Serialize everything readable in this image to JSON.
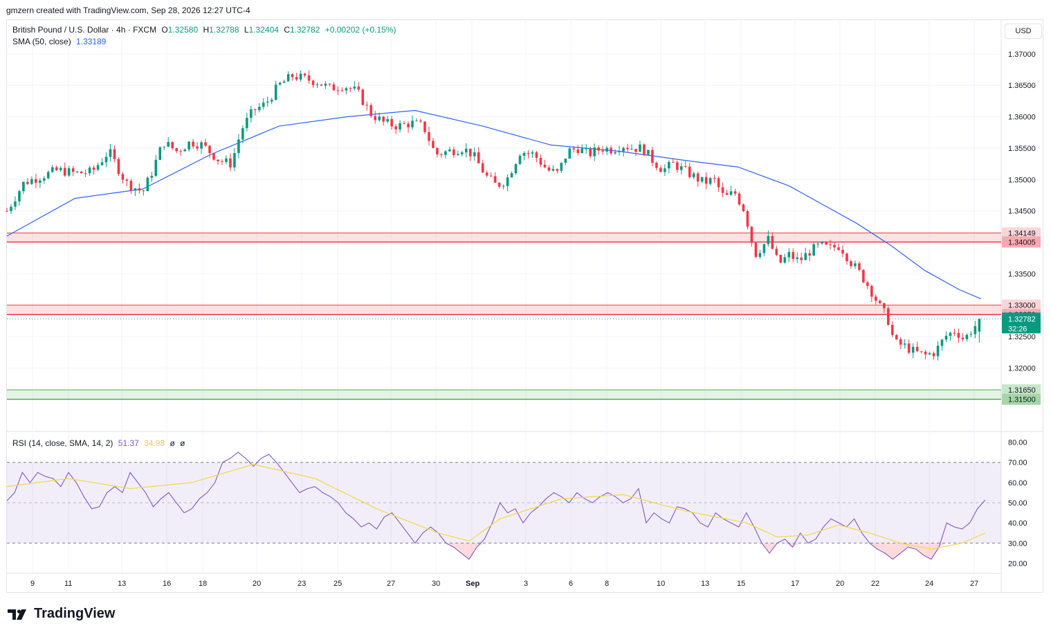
{
  "header": {
    "credit": "gmzern created with TradingView.com, Sep 28, 2026 12:27 UTC-4"
  },
  "legend": {
    "symbol": "British Pound / U.S. Dollar · 4h · FXCM",
    "o_label": "O",
    "o": "1.32580",
    "h_label": "H",
    "h": "1.32788",
    "l_label": "L",
    "l": "1.32404",
    "c_label": "C",
    "c": "1.32782",
    "change": "+0.00202 (+0.15%)",
    "sma_label": "SMA (50, close)",
    "sma_value": "1.33189",
    "rsi_label": "RSI (14, close, SMA, 14, 2)",
    "rsi_value": "51.37",
    "rsi_ma_value": "34.98",
    "rsi_extra1": "ø",
    "rsi_extra2": "ø"
  },
  "currency_button": "USD",
  "brand": "TradingView",
  "colors": {
    "up": "#089981",
    "down": "#f23645",
    "sma": "#2962ff",
    "rsi": "#7e57c2",
    "rsi_ma": "#f2d94c",
    "resistance": "#f23645",
    "support": "#4caf50",
    "grid": "#f0f3fa",
    "text": "#131722"
  },
  "chart_data": [
    {
      "type": "candlestick",
      "title": "British Pound / U.S. Dollar · 4h · FXCM",
      "ylim": [
        1.31,
        1.3755
      ],
      "y_ticks": [
        "1.37000",
        "1.36500",
        "1.36000",
        "1.35500",
        "1.35000",
        "1.34500",
        "1.33500",
        "1.32500",
        "1.32000"
      ],
      "x_ticks": [
        "9",
        "11",
        "13",
        "16",
        "18",
        "20",
        "23",
        "25",
        "27",
        "30",
        "Sep",
        "3",
        "6",
        "8",
        "10",
        "13",
        "15",
        "17",
        "20",
        "22",
        "24",
        "27"
      ],
      "zones": [
        {
          "kind": "resistance",
          "top": 1.34149,
          "bottom": 1.34005,
          "labels": [
            "1.34149",
            "1.34005"
          ]
        },
        {
          "kind": "resistance",
          "top": 1.33,
          "bottom": 1.3285,
          "labels": [
            "1.33000",
            "1.32850"
          ]
        },
        {
          "kind": "support",
          "top": 1.3165,
          "bottom": 1.315,
          "labels": [
            "1.31650",
            "1.31500"
          ]
        }
      ],
      "last_price": {
        "value": 1.32782,
        "label": "1.32782",
        "countdown": "32:26"
      },
      "close_path": [
        [
          0,
          1.345
        ],
        [
          10,
          1.3495
        ],
        [
          20,
          1.3505
        ],
        [
          30,
          1.3515
        ],
        [
          40,
          1.351
        ],
        [
          50,
          1.3512
        ],
        [
          60,
          1.3545
        ],
        [
          70,
          1.3495
        ],
        [
          80,
          1.348
        ],
        [
          85,
          1.351
        ],
        [
          92,
          1.356
        ],
        [
          100,
          1.3545
        ],
        [
          108,
          1.356
        ],
        [
          115,
          1.3555
        ],
        [
          125,
          1.353
        ],
        [
          132,
          1.3525
        ],
        [
          138,
          1.358
        ],
        [
          145,
          1.361
        ],
        [
          152,
          1.362
        ],
        [
          160,
          1.365
        ],
        [
          168,
          1.3665
        ],
        [
          176,
          1.366
        ],
        [
          183,
          1.3655
        ],
        [
          190,
          1.3645
        ],
        [
          198,
          1.365
        ],
        [
          206,
          1.364
        ],
        [
          214,
          1.3605
        ],
        [
          222,
          1.359
        ],
        [
          230,
          1.3585
        ],
        [
          238,
          1.359
        ],
        [
          245,
          1.3585
        ],
        [
          252,
          1.354
        ],
        [
          260,
          1.3545
        ],
        [
          268,
          1.355
        ],
        [
          274,
          1.354
        ],
        [
          282,
          1.3505
        ],
        [
          288,
          1.349
        ],
        [
          294,
          1.35
        ],
        [
          302,
          1.3545
        ],
        [
          310,
          1.354
        ],
        [
          318,
          1.3515
        ],
        [
          324,
          1.351
        ],
        [
          330,
          1.3545
        ],
        [
          336,
          1.355
        ],
        [
          342,
          1.354
        ],
        [
          350,
          1.355
        ],
        [
          356,
          1.3548
        ],
        [
          362,
          1.3555
        ],
        [
          368,
          1.355
        ],
        [
          374,
          1.355
        ],
        [
          380,
          1.353
        ],
        [
          386,
          1.3515
        ],
        [
          392,
          1.3525
        ],
        [
          398,
          1.3515
        ],
        [
          404,
          1.3505
        ],
        [
          410,
          1.3495
        ],
        [
          416,
          1.35
        ],
        [
          422,
          1.347
        ],
        [
          428,
          1.348
        ],
        [
          434,
          1.345
        ],
        [
          440,
          1.338
        ],
        [
          448,
          1.3405
        ],
        [
          454,
          1.3365
        ],
        [
          460,
          1.338
        ],
        [
          466,
          1.337
        ],
        [
          472,
          1.3385
        ],
        [
          478,
          1.3395
        ],
        [
          484,
          1.339
        ],
        [
          490,
          1.3395
        ],
        [
          496,
          1.337
        ],
        [
          502,
          1.335
        ],
        [
          508,
          1.3325
        ],
        [
          514,
          1.3295
        ],
        [
          518,
          1.328
        ],
        [
          522,
          1.324
        ],
        [
          528,
          1.3235
        ],
        [
          534,
          1.3225
        ],
        [
          540,
          1.322
        ],
        [
          546,
          1.3225
        ],
        [
          552,
          1.325
        ],
        [
          558,
          1.326
        ],
        [
          563,
          1.3245
        ],
        [
          568,
          1.3262
        ],
        [
          573,
          1.3278
        ]
      ],
      "sma_path": [
        [
          0,
          1.341
        ],
        [
          40,
          1.347
        ],
        [
          80,
          1.3485
        ],
        [
          120,
          1.354
        ],
        [
          160,
          1.3585
        ],
        [
          200,
          1.36
        ],
        [
          240,
          1.361
        ],
        [
          280,
          1.3585
        ],
        [
          320,
          1.3555
        ],
        [
          360,
          1.3545
        ],
        [
          400,
          1.353
        ],
        [
          430,
          1.352
        ],
        [
          460,
          1.349
        ],
        [
          480,
          1.346
        ],
        [
          500,
          1.343
        ],
        [
          520,
          1.3395
        ],
        [
          540,
          1.3355
        ],
        [
          560,
          1.3325
        ],
        [
          573,
          1.331
        ]
      ],
      "x_range": [
        0,
        580
      ]
    },
    {
      "type": "line",
      "title": "RSI (14, close, SMA, 14, 2)",
      "ylim": [
        15,
        85
      ],
      "y_ticks": [
        "80.00",
        "70.00",
        "60.00",
        "50.00",
        "40.00",
        "30.00",
        "20.00"
      ],
      "band": [
        30,
        70
      ],
      "midline": 50,
      "series": [
        {
          "name": "RSI",
          "values": [
            [
              0,
              51
            ],
            [
              5,
              55
            ],
            [
              10,
              65
            ],
            [
              15,
              60
            ],
            [
              20,
              65
            ],
            [
              25,
              63
            ],
            [
              30,
              62
            ],
            [
              35,
              58
            ],
            [
              40,
              65
            ],
            [
              45,
              60
            ],
            [
              50,
              53
            ],
            [
              55,
              47
            ],
            [
              60,
              48
            ],
            [
              65,
              55
            ],
            [
              70,
              58
            ],
            [
              75,
              55
            ],
            [
              80,
              65
            ],
            [
              85,
              60
            ],
            [
              90,
              55
            ],
            [
              95,
              48
            ],
            [
              100,
              52
            ],
            [
              105,
              55
            ],
            [
              110,
              50
            ],
            [
              115,
              45
            ],
            [
              120,
              47
            ],
            [
              125,
              52
            ],
            [
              130,
              55
            ],
            [
              135,
              60
            ],
            [
              140,
              70
            ],
            [
              145,
              72
            ],
            [
              150,
              75
            ],
            [
              155,
              72
            ],
            [
              160,
              68
            ],
            [
              165,
              72
            ],
            [
              170,
              74
            ],
            [
              175,
              70
            ],
            [
              180,
              65
            ],
            [
              185,
              60
            ],
            [
              190,
              55
            ],
            [
              195,
              57
            ],
            [
              200,
              58
            ],
            [
              205,
              55
            ],
            [
              210,
              53
            ],
            [
              215,
              50
            ],
            [
              220,
              45
            ],
            [
              225,
              42
            ],
            [
              230,
              38
            ],
            [
              235,
              40
            ],
            [
              240,
              37
            ],
            [
              245,
              43
            ],
            [
              250,
              45
            ],
            [
              255,
              40
            ],
            [
              260,
              35
            ],
            [
              265,
              30
            ],
            [
              270,
              35
            ],
            [
              275,
              38
            ],
            [
              280,
              35
            ],
            [
              285,
              30
            ],
            [
              290,
              28
            ],
            [
              295,
              25
            ],
            [
              300,
              22
            ],
            [
              305,
              28
            ],
            [
              310,
              32
            ],
            [
              315,
              40
            ],
            [
              320,
              50
            ],
            [
              325,
              45
            ],
            [
              330,
              47
            ],
            [
              335,
              40
            ],
            [
              340,
              45
            ],
            [
              345,
              48
            ],
            [
              350,
              52
            ],
            [
              355,
              55
            ],
            [
              360,
              53
            ],
            [
              365,
              50
            ],
            [
              370,
              55
            ],
            [
              375,
              52
            ],
            [
              380,
              50
            ],
            [
              385,
              53
            ],
            [
              390,
              55
            ],
            [
              395,
              53
            ],
            [
              400,
              50
            ],
            [
              405,
              52
            ],
            [
              410,
              57
            ],
            [
              415,
              40
            ],
            [
              420,
              45
            ],
            [
              425,
              42
            ],
            [
              430,
              40
            ],
            [
              435,
              48
            ],
            [
              440,
              47
            ],
            [
              445,
              45
            ],
            [
              450,
              40
            ],
            [
              455,
              38
            ],
            [
              460,
              45
            ],
            [
              465,
              42
            ],
            [
              470,
              40
            ],
            [
              475,
              38
            ],
            [
              480,
              45
            ],
            [
              485,
              38
            ],
            [
              490,
              30
            ],
            [
              495,
              25
            ],
            [
              500,
              30
            ],
            [
              505,
              32
            ],
            [
              510,
              28
            ],
            [
              515,
              35
            ],
            [
              520,
              30
            ],
            [
              525,
              32
            ],
            [
              530,
              38
            ],
            [
              535,
              42
            ],
            [
              540,
              40
            ],
            [
              545,
              38
            ],
            [
              550,
              42
            ],
            [
              555,
              35
            ],
            [
              560,
              30
            ],
            [
              565,
              27
            ],
            [
              570,
              25
            ],
            [
              575,
              22
            ],
            [
              580,
              25
            ],
            [
              585,
              28
            ],
            [
              590,
              27
            ],
            [
              595,
              24
            ],
            [
              600,
              22
            ],
            [
              605,
              28
            ],
            [
              610,
              40
            ],
            [
              615,
              38
            ],
            [
              620,
              37
            ],
            [
              625,
              40
            ],
            [
              630,
              47
            ],
            [
              635,
              51.37
            ]
          ]
        },
        {
          "name": "RSI MA",
          "values": [
            [
              0,
              58
            ],
            [
              40,
              62
            ],
            [
              80,
              57
            ],
            [
              120,
              60
            ],
            [
              160,
              69
            ],
            [
              200,
              62
            ],
            [
              240,
              47
            ],
            [
              280,
              35
            ],
            [
              300,
              31
            ],
            [
              320,
              42
            ],
            [
              360,
              52
            ],
            [
              400,
              54
            ],
            [
              440,
              46
            ],
            [
              480,
              40
            ],
            [
              500,
              33
            ],
            [
              520,
              34
            ],
            [
              540,
              39
            ],
            [
              560,
              35
            ],
            [
              580,
              30
            ],
            [
              600,
              27
            ],
            [
              620,
              30
            ],
            [
              635,
              34.98
            ]
          ]
        }
      ],
      "x_range": [
        0,
        640
      ]
    }
  ]
}
